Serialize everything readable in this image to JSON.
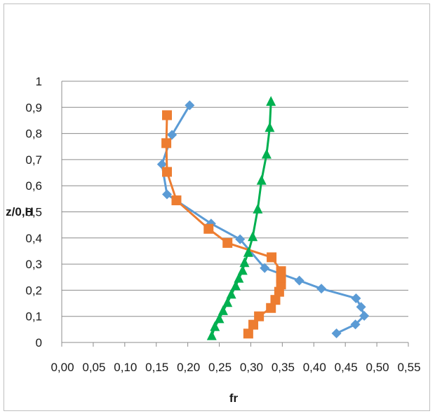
{
  "chart_data": {
    "type": "line",
    "title": "",
    "xlabel": "fr",
    "ylabel": "z/0,H",
    "xlim": [
      0,
      0.55
    ],
    "ylim": [
      0,
      1
    ],
    "x_tick_labels": [
      "0,00",
      "0,05",
      "0,10",
      "0,15",
      "0,20",
      "0,25",
      "0,30",
      "0,35",
      "0,40",
      "0,45",
      "0,50",
      "0,55"
    ],
    "y_tick_labels": [
      "0",
      "0,1",
      "0,2",
      "0,3",
      "0,4",
      "0,5",
      "0,6",
      "0,7",
      "0,8",
      "0,9",
      "1"
    ],
    "grid": "horizontal",
    "legend": "none",
    "series": [
      {
        "marker": "diamond",
        "color": "#5b9bd5",
        "points": [
          [
            0.436,
            0.035
          ],
          [
            0.466,
            0.069
          ],
          [
            0.48,
            0.102
          ],
          [
            0.475,
            0.136
          ],
          [
            0.467,
            0.169
          ],
          [
            0.412,
            0.206
          ],
          [
            0.377,
            0.237
          ],
          [
            0.322,
            0.285
          ],
          [
            0.283,
            0.395
          ],
          [
            0.237,
            0.455
          ],
          [
            0.167,
            0.567
          ],
          [
            0.159,
            0.682
          ],
          [
            0.175,
            0.795
          ],
          [
            0.203,
            0.908
          ]
        ]
      },
      {
        "marker": "square",
        "color": "#ed7d31",
        "points": [
          [
            0.296,
            0.034
          ],
          [
            0.304,
            0.068
          ],
          [
            0.313,
            0.1
          ],
          [
            0.332,
            0.132
          ],
          [
            0.339,
            0.163
          ],
          [
            0.345,
            0.194
          ],
          [
            0.348,
            0.222
          ],
          [
            0.348,
            0.248
          ],
          [
            0.348,
            0.273
          ],
          [
            0.333,
            0.326
          ],
          [
            0.263,
            0.381
          ],
          [
            0.233,
            0.435
          ],
          [
            0.182,
            0.544
          ],
          [
            0.167,
            0.653
          ],
          [
            0.166,
            0.763
          ],
          [
            0.167,
            0.87
          ]
        ]
      },
      {
        "marker": "triangle",
        "color": "#00b050",
        "points": [
          [
            0.238,
            0.025
          ],
          [
            0.243,
            0.06
          ],
          [
            0.25,
            0.09
          ],
          [
            0.256,
            0.121
          ],
          [
            0.263,
            0.152
          ],
          [
            0.269,
            0.184
          ],
          [
            0.276,
            0.216
          ],
          [
            0.281,
            0.245
          ],
          [
            0.287,
            0.275
          ],
          [
            0.29,
            0.305
          ],
          [
            0.296,
            0.344
          ],
          [
            0.303,
            0.404
          ],
          [
            0.311,
            0.51
          ],
          [
            0.317,
            0.62
          ],
          [
            0.325,
            0.72
          ],
          [
            0.33,
            0.822
          ],
          [
            0.332,
            0.922
          ]
        ]
      }
    ]
  }
}
